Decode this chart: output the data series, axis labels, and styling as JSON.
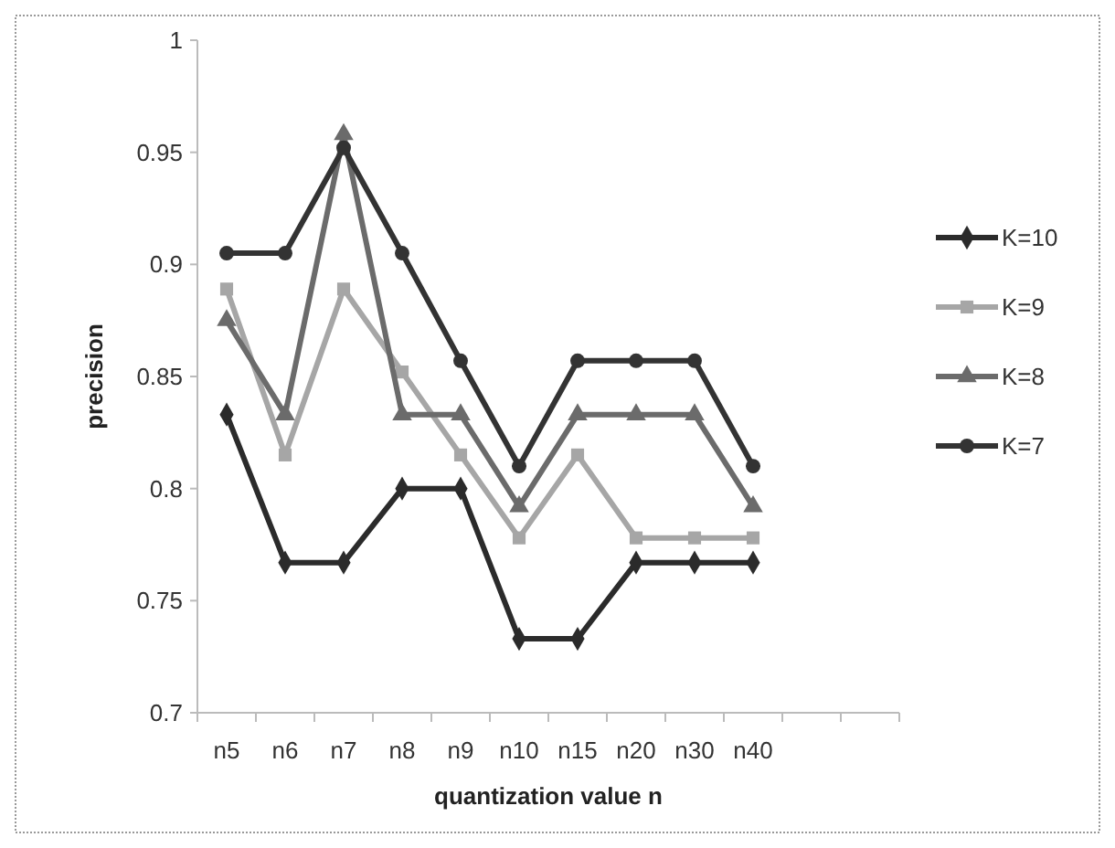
{
  "chart_data": {
    "type": "line",
    "xlabel": "quantization value n",
    "ylabel": "precision",
    "categories": [
      "n5",
      "n6",
      "n7",
      "n8",
      "n9",
      "n10",
      "n15",
      "n20",
      "n30",
      "n40",
      null,
      null
    ],
    "ylim": [
      0.7,
      1
    ],
    "yticks": [
      0.7,
      0.75,
      0.8,
      0.85,
      0.9,
      0.95,
      1
    ],
    "grid": false,
    "legend": "right",
    "series": [
      {
        "name": "K=10",
        "color": "#2b2b2b",
        "marker": "diamond",
        "values": [
          0.833,
          0.767,
          0.767,
          0.8,
          0.8,
          0.733,
          0.733,
          0.767,
          0.767,
          0.767,
          null,
          null
        ]
      },
      {
        "name": "K=9",
        "color": "#a6a6a6",
        "marker": "square",
        "values": [
          0.889,
          0.815,
          0.889,
          0.852,
          0.815,
          0.778,
          0.815,
          0.778,
          0.778,
          0.778,
          null,
          null
        ]
      },
      {
        "name": "K=8",
        "color": "#6b6b6b",
        "marker": "triangle",
        "values": [
          0.875,
          0.833,
          0.958,
          0.833,
          0.833,
          0.792,
          0.833,
          0.833,
          0.833,
          0.792,
          null,
          null
        ]
      },
      {
        "name": "K=7",
        "color": "#333333",
        "marker": "circle",
        "values": [
          0.905,
          0.905,
          0.952,
          0.905,
          0.857,
          0.81,
          0.857,
          0.857,
          0.857,
          0.81,
          null,
          null
        ]
      }
    ]
  }
}
